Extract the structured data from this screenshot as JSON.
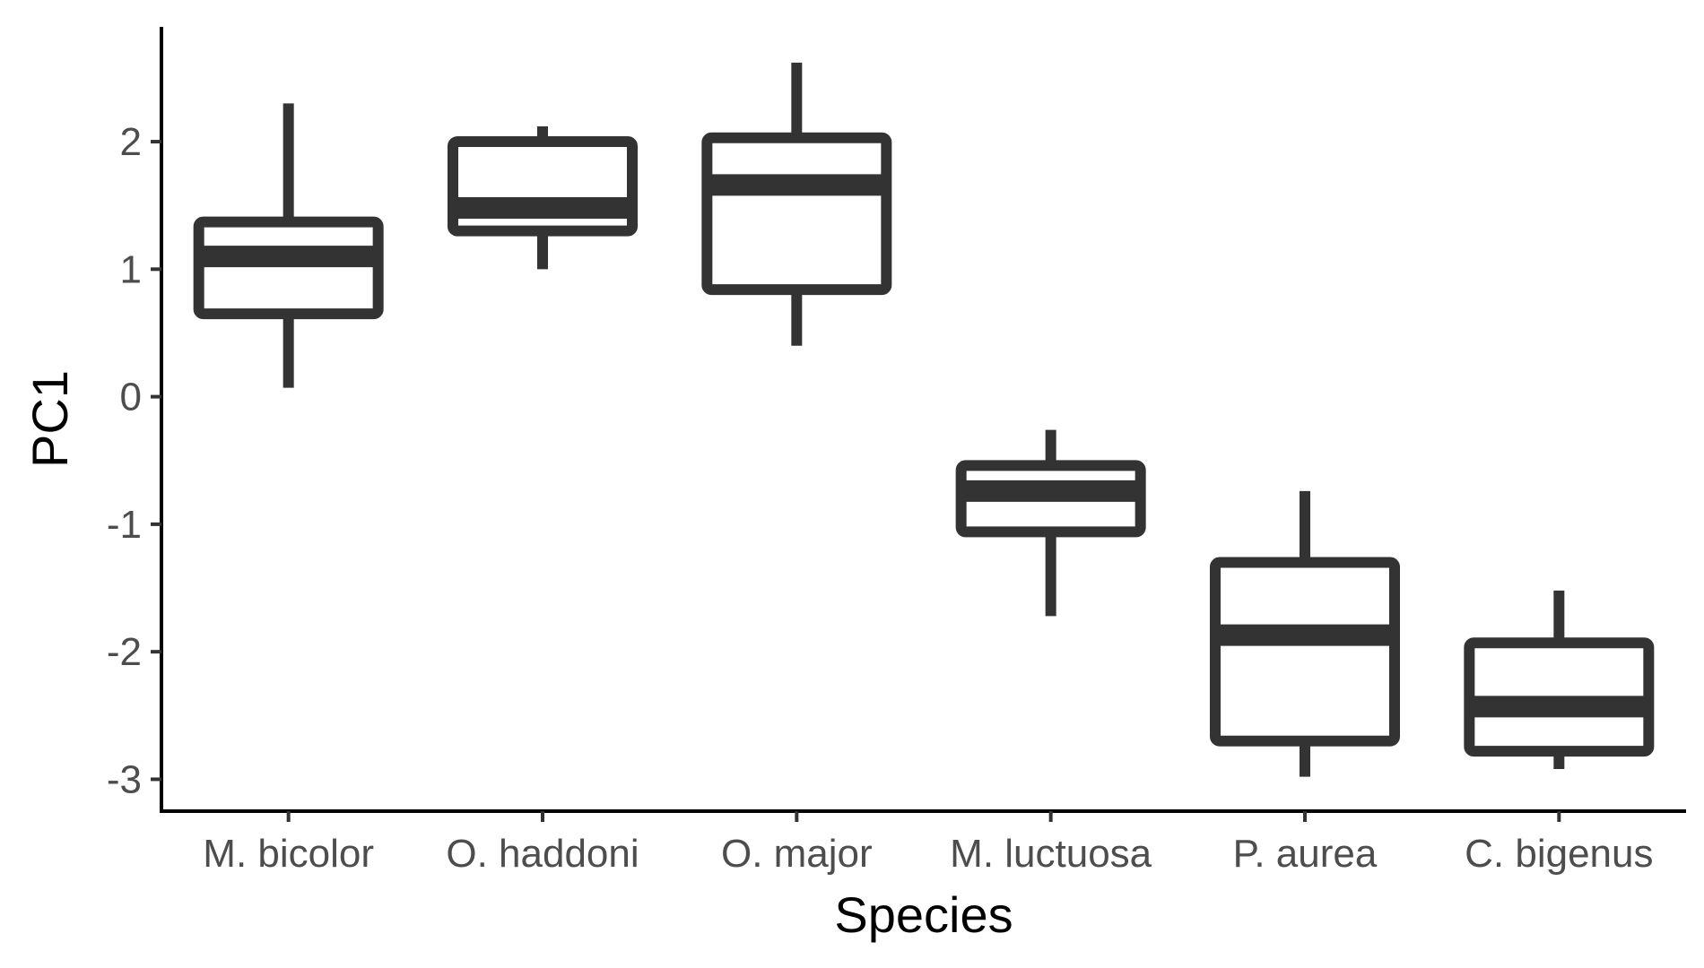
{
  "chart_data": {
    "type": "boxplot",
    "title": "",
    "xlabel": "Species",
    "ylabel": "PC1",
    "ylim": [
      -3.25,
      2.9
    ],
    "yticks": [
      2,
      1,
      0,
      -1,
      -2,
      -3
    ],
    "grid": false,
    "categories": [
      "M. bicolor",
      "O. haddoni",
      "O. major",
      "M. luctuosa",
      "P. aurea",
      "C. bigenus"
    ],
    "boxes": [
      {
        "name": "M. bicolor",
        "whisker_low": 0.07,
        "q1": 0.65,
        "median": 1.1,
        "q3": 1.37,
        "whisker_high": 2.3
      },
      {
        "name": "O. haddoni",
        "whisker_low": 1.0,
        "q1": 1.3,
        "median": 1.48,
        "q3": 2.0,
        "whisker_high": 2.12
      },
      {
        "name": "O. major",
        "whisker_low": 0.4,
        "q1": 0.84,
        "median": 1.66,
        "q3": 2.03,
        "whisker_high": 2.62
      },
      {
        "name": "M. luctuosa",
        "whisker_low": -1.72,
        "q1": -1.06,
        "median": -0.74,
        "q3": -0.54,
        "whisker_high": -0.26
      },
      {
        "name": "P. aurea",
        "whisker_low": -2.98,
        "q1": -2.7,
        "median": -1.87,
        "q3": -1.3,
        "whisker_high": -0.74
      },
      {
        "name": "C. bigenus",
        "whisker_low": -2.92,
        "q1": -2.78,
        "median": -2.43,
        "q3": -1.93,
        "whisker_high": -1.52
      }
    ],
    "colors": {
      "box_stroke": "#333333",
      "axis": "#000000",
      "tick_text": "#4d4d4d"
    }
  }
}
